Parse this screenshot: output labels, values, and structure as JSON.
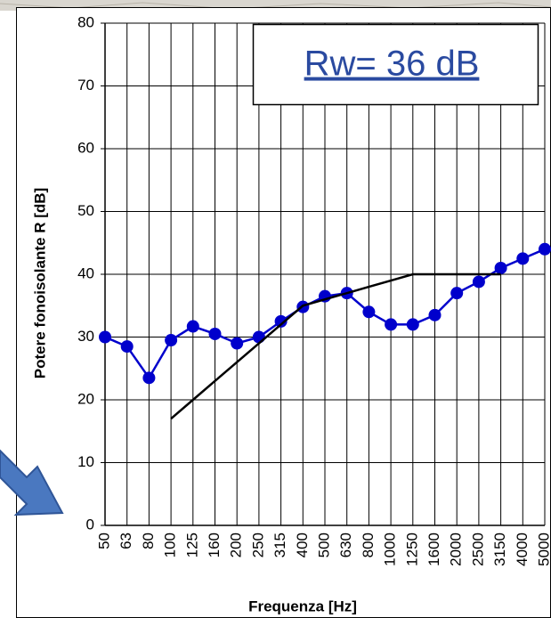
{
  "chart_data": {
    "type": "line",
    "x_label": "Frequenza [Hz]",
    "y_label": "Potere fonoisolante R [dB]",
    "annotation": "Rw= 36 dB",
    "categories": [
      "50",
      "63",
      "80",
      "100",
      "125",
      "160",
      "200",
      "250",
      "315",
      "400",
      "500",
      "630",
      "800",
      "1000",
      "1250",
      "1600",
      "2000",
      "2500",
      "3150",
      "4000",
      "5000"
    ],
    "series": [
      {
        "color": "#0000cc",
        "marker": true,
        "values": [
          30,
          28.5,
          23.5,
          29.5,
          31.7,
          30.5,
          29,
          30,
          32.5,
          34.8,
          36.5,
          37,
          34,
          32,
          32,
          33.5,
          37,
          38.8,
          41,
          42.5,
          44
        ]
      },
      {
        "color": "#000000",
        "marker": false,
        "values": [
          null,
          null,
          null,
          17,
          20,
          23,
          26,
          29,
          32,
          35,
          36,
          37,
          38,
          39,
          40,
          40,
          40,
          40,
          40,
          null,
          null
        ]
      }
    ],
    "ylim": [
      0,
      80
    ],
    "yticks": [
      0,
      10,
      20,
      30,
      40,
      50,
      60,
      70,
      80
    ],
    "grid": true
  }
}
